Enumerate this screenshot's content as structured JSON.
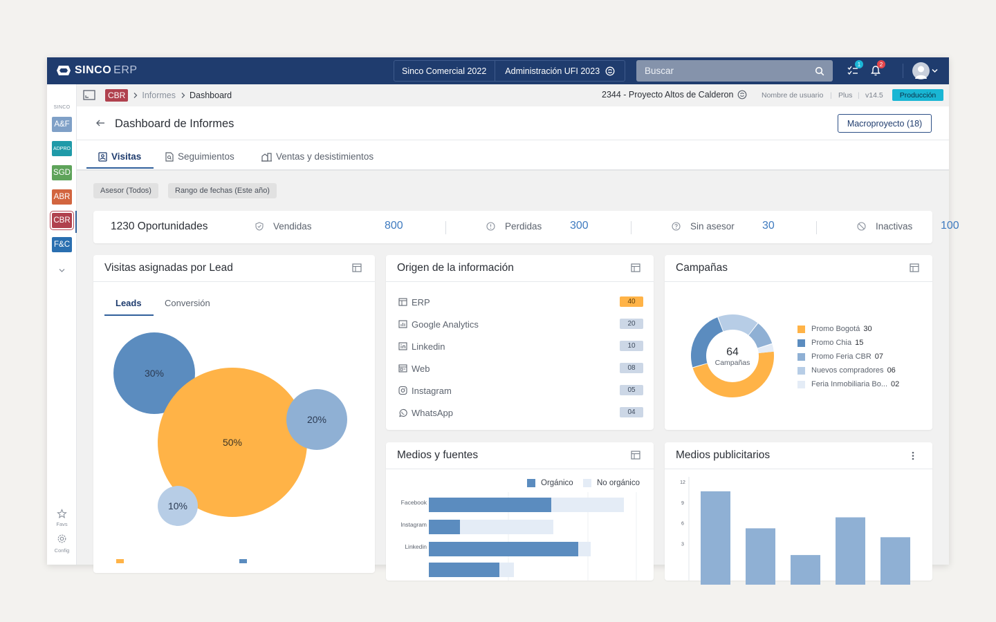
{
  "topbar": {
    "brand": "SINCO",
    "brand_sub": "ERP",
    "company": "Sinco Comercial 2022",
    "admin": "Administración UFI 2023",
    "search_placeholder": "Buscar",
    "tasks_badge": "1",
    "notif_badge": "2",
    "colors": {
      "bar": "#1f3c6e",
      "tasks_badge": "#1bb6d6",
      "notif_badge": "#e2464c"
    }
  },
  "sidebar": {
    "label": "SINCO",
    "modules": [
      {
        "label": "A&F",
        "color": "#7fa0c7"
      },
      {
        "label": "ADPRO",
        "color": "#1f9aa8"
      },
      {
        "label": "SGD",
        "color": "#5ea35a"
      },
      {
        "label": "ABR",
        "color": "#d2653f"
      },
      {
        "label": "CBR",
        "color": "#b0414e"
      },
      {
        "label": "F&C",
        "color": "#2a6fb0"
      }
    ],
    "favs_label": "Favs",
    "config_label": "Config"
  },
  "breadcrumb": {
    "module": "CBR",
    "items": [
      "Informes",
      "Dashboard"
    ],
    "project": "2344 - Proyecto Altos de Calderon",
    "user": "Nombre de usuario",
    "plan": "Plus",
    "version": "v14.5",
    "env": "Producción"
  },
  "header": {
    "title": "Dashboard de Informes",
    "macro_button": "Macroproyecto (18)",
    "tabs": [
      "Visitas",
      "Seguimientos",
      "Ventas y desistimientos"
    ]
  },
  "filters": [
    "Asesor (Todos)",
    "Rango de fechas (Este año)"
  ],
  "kpi": {
    "title": "1230 Oportunidades",
    "items": [
      {
        "label": "Vendidas",
        "value": "800"
      },
      {
        "label": "Perdidas",
        "value": "300"
      },
      {
        "label": "Sin asesor",
        "value": "30"
      },
      {
        "label": "Inactivas",
        "value": "100"
      }
    ]
  },
  "visitas": {
    "title": "Visitas asignadas por Lead",
    "tabs": [
      "Leads",
      "Conversión"
    ],
    "bubbles": [
      {
        "label": "30%",
        "value": 30,
        "color": "#5b8cbf"
      },
      {
        "label": "50%",
        "value": 50,
        "color": "#ffb347"
      },
      {
        "label": "20%",
        "value": 20,
        "color": "#8fb0d4"
      },
      {
        "label": "10%",
        "value": 10,
        "color": "#b7cde6"
      }
    ]
  },
  "origen": {
    "title": "Origen de la información",
    "rows": [
      {
        "label": "ERP",
        "value": "40",
        "icon": "table-icon",
        "highlight": true
      },
      {
        "label": "Google Analytics",
        "value": "20",
        "icon": "analytics-icon"
      },
      {
        "label": "Linkedin",
        "value": "10",
        "icon": "linkedin-icon"
      },
      {
        "label": "Web",
        "value": "08",
        "icon": "web-icon"
      },
      {
        "label": "Instagram",
        "value": "05",
        "icon": "instagram-icon"
      },
      {
        "label": "WhatsApp",
        "value": "04",
        "icon": "whatsapp-icon"
      }
    ]
  },
  "campanas": {
    "title": "Campañas",
    "center_value": "64",
    "center_label": "Campañas",
    "legend": [
      {
        "label": "Promo Bogotá",
        "value": "30",
        "color": "#ffb347"
      },
      {
        "label": "Promo Chia",
        "value": "15",
        "color": "#5b8cbf"
      },
      {
        "label": "Promo Feria CBR",
        "value": "07",
        "color": "#8fb0d4"
      },
      {
        "label": "Nuevos compradores",
        "value": "06",
        "color": "#b7cde6"
      },
      {
        "label": "Feria Inmobiliaria Bo...",
        "value": "02",
        "color": "#e4ecf6"
      }
    ]
  },
  "medios": {
    "title": "Medios y fuentes",
    "legend": [
      "Orgánico",
      "No orgánico"
    ],
    "colors": [
      "#5b8cbf",
      "#e4ecf6"
    ]
  },
  "publicitarios": {
    "title": "Medios publicitarios"
  },
  "chart_data": [
    {
      "type": "bar",
      "orientation": "horizontal",
      "stacked": true,
      "title": "Medios y fuentes",
      "categories": [
        "Facebook",
        "Instagram",
        "Linkedin"
      ],
      "series": [
        {
          "name": "Orgánico",
          "values": [
            59,
            15,
            72
          ]
        },
        {
          "name": "No orgánico",
          "values": [
            35,
            45,
            6
          ]
        }
      ],
      "xlim": [
        0,
        100
      ],
      "legend": "top-right"
    },
    {
      "type": "bar",
      "title": "Medios publicitarios",
      "categories": [
        "",
        "",
        "",
        "",
        ""
      ],
      "values": [
        10.6,
        5.2,
        1.3,
        6.8,
        3.9
      ],
      "yticks": [
        "12",
        "9",
        "6",
        "3"
      ],
      "ylim": [
        0,
        12
      ]
    }
  ]
}
